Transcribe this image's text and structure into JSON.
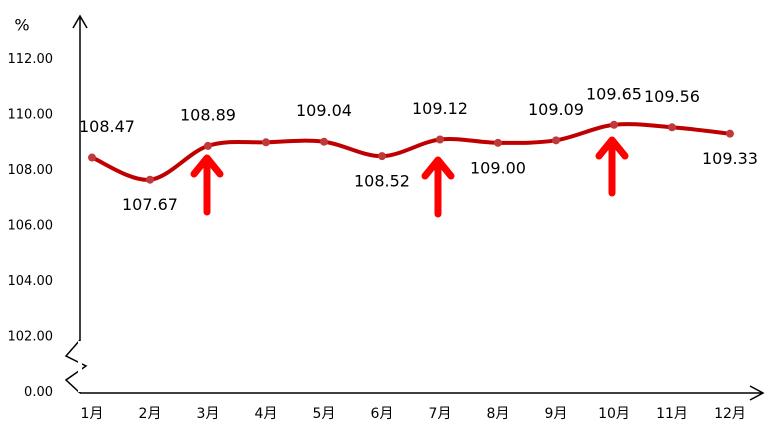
{
  "chart_data": {
    "type": "line",
    "ylabel": "%",
    "categories": [
      "1月",
      "2月",
      "3月",
      "4月",
      "5月",
      "6月",
      "7月",
      "8月",
      "9月",
      "10月",
      "11月",
      "12月"
    ],
    "series": [
      {
        "color": "#c00000",
        "values": [
          108.47,
          107.67,
          108.89,
          109.02,
          109.04,
          108.52,
          109.12,
          109.0,
          109.09,
          109.65,
          109.56,
          109.33
        ],
        "value_labels": [
          "108.47",
          "107.67",
          "108.89",
          null,
          "109.04",
          "108.52",
          "109.12",
          "109.00",
          "109.09",
          "109.65",
          "109.56",
          "109.33"
        ]
      }
    ],
    "marker_color": "#c0393b",
    "ylim": [
      0,
      113.5
    ],
    "axis_break": true,
    "yticks": [
      {
        "value": 0,
        "label": "0.00"
      },
      {
        "value": 102,
        "label": "102.00"
      },
      {
        "value": 104,
        "label": "104.00"
      },
      {
        "value": 106,
        "label": "106.00"
      },
      {
        "value": 108,
        "label": "108.00"
      },
      {
        "value": 110,
        "label": "110.00"
      },
      {
        "value": 112,
        "label": "112.00"
      }
    ],
    "grid": false
  }
}
